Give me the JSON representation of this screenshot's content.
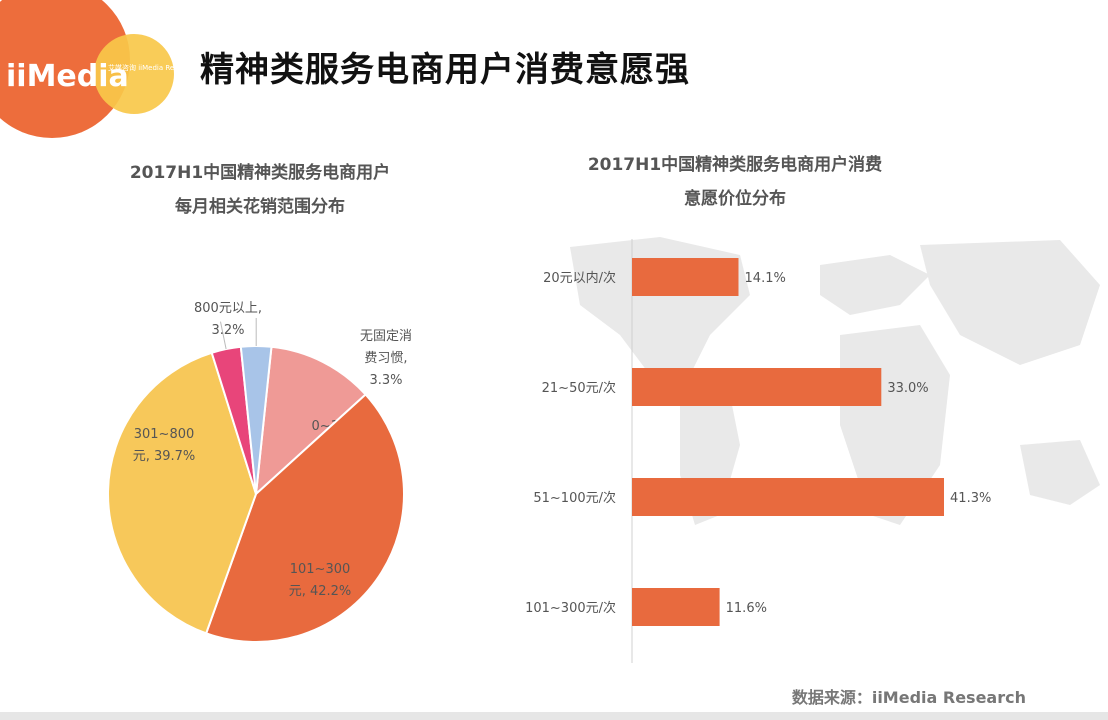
{
  "page": {
    "title": "精神类服务电商用户消费意愿强",
    "source": "数据来源：iiMedia Research"
  },
  "logo": {
    "text": "iiMedia",
    "sub_text": "艾媒咨询 iiMedia Research",
    "colors": {
      "primary": "#ed6d3c",
      "secondary": "#f9c84a"
    }
  },
  "chart_data": [
    {
      "type": "pie",
      "title_lines": [
        "2017H1中国精神类服务电商用户",
        "每月相关花销范围分布"
      ],
      "slices": [
        {
          "label": "0~100元",
          "value": 11.6,
          "value_label": "11.6%",
          "color": "#ef9a96"
        },
        {
          "label": "101~300元",
          "value": 42.2,
          "value_label": "42.2%",
          "color": "#e86a3e"
        },
        {
          "label": "301~800元",
          "value": 39.7,
          "value_label": "39.7%",
          "color": "#f7c85a"
        },
        {
          "label": "800元以上",
          "value": 3.2,
          "value_label": "3.2%",
          "color": "#e8457a"
        },
        {
          "label": "无固定消费习惯",
          "value": 3.3,
          "value_label": "3.3%",
          "color": "#a8c4e8"
        }
      ],
      "labels_display": [
        {
          "lines": [
            "0~100元,",
            "11.6%"
          ]
        },
        {
          "lines": [
            "101~300",
            "元, 42.2%"
          ]
        },
        {
          "lines": [
            "301~800",
            "元, 39.7%"
          ]
        },
        {
          "lines": [
            "800元以上,",
            "3.2%"
          ]
        },
        {
          "lines": [
            "无固定消",
            "费习惯,",
            "3.3%"
          ]
        }
      ]
    },
    {
      "type": "bar",
      "orientation": "horizontal",
      "title_lines": [
        "2017H1中国精神类服务电商用户消费",
        "意愿价位分布"
      ],
      "categories": [
        "20元以内/次",
        "21~50元/次",
        "51~100元/次",
        "101~300元/次"
      ],
      "values": [
        14.1,
        33.0,
        41.3,
        11.6
      ],
      "value_labels": [
        "14.1%",
        "33.0%",
        "41.3%",
        "11.6%"
      ],
      "color": "#e86a3e",
      "xlim": [
        0,
        45
      ]
    }
  ]
}
